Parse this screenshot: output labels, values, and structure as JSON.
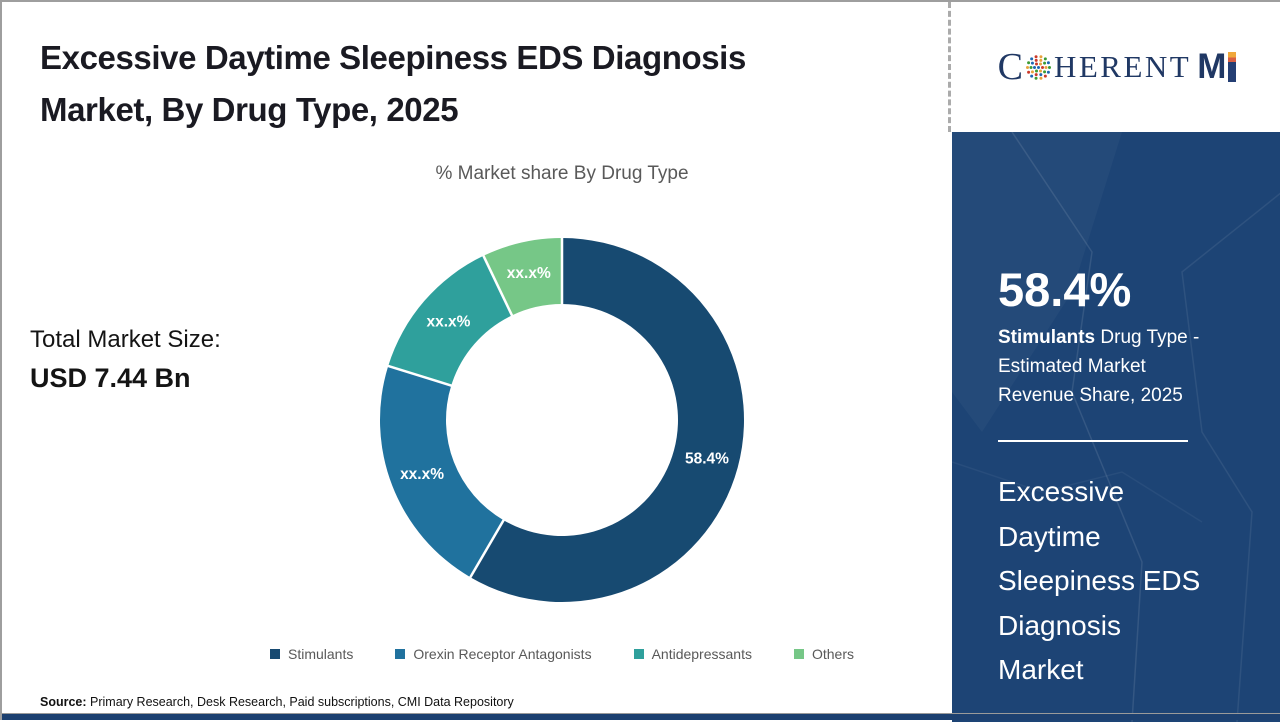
{
  "header": {
    "title_line1": "Excessive Daytime Sleepiness EDS Diagnosis",
    "title_line2": "Market, By Drug Type, 2025"
  },
  "chart_data": {
    "type": "pie",
    "donut": true,
    "title": "% Market share By Drug Type",
    "categories": [
      "Stimulants",
      "Orexin Receptor Antagonists",
      "Antidepressants",
      "Others"
    ],
    "values": [
      58.4,
      21.4,
      13.1,
      7.1
    ],
    "slice_labels": [
      "58.4%",
      "xx.x%",
      "xx.x%",
      "xx.x%"
    ],
    "colors": [
      "#174a71",
      "#20729e",
      "#2fa09c",
      "#76c787"
    ],
    "legend_position": "bottom",
    "start_angle_deg": 0,
    "label_radius_fraction": 0.825
  },
  "total_market": {
    "label": "Total Market Size:",
    "value": "USD 7.44 Bn"
  },
  "source": {
    "label": "Source:",
    "text": " Primary Research, Desk Research, Paid subscriptions, CMI Data Repository"
  },
  "logo": {
    "brand_name": "COHERENT MI",
    "part_c": "C",
    "part_herent": "HERENT",
    "part_m": "M",
    "navy": "#203864",
    "dot_colors": [
      "#3d9b35",
      "#1e68b2",
      "#cb3a2a",
      "#e8a33d"
    ]
  },
  "sidebar": {
    "background": "#1d4475",
    "stat_value": "58.4%",
    "stat_highlight": "Stimulants",
    "stat_line1_rest": " Drug Type -",
    "stat_line2": "Estimated Market",
    "stat_line3": "Revenue Share, 2025",
    "market_name": "Excessive Daytime Sleepiness EDS Diagnosis Market",
    "market_name_lines": [
      "Excessive",
      "Daytime",
      "Sleepiness EDS",
      "Diagnosis",
      "Market"
    ]
  }
}
